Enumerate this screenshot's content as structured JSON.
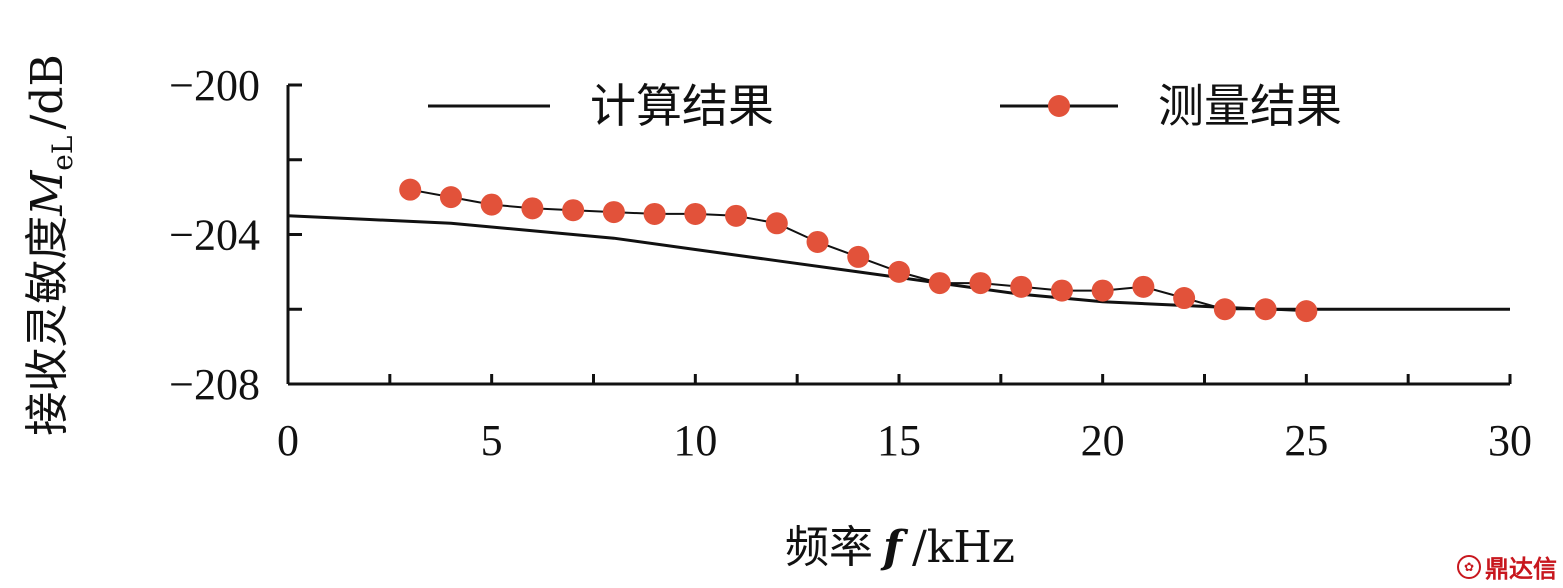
{
  "chart_data": {
    "type": "line",
    "xlabel_prefix": "频率",
    "xlabel_var": "f",
    "xlabel_unit": "/kHz",
    "ylabel_prefix": "接收灵敏度",
    "ylabel_var": "M",
    "ylabel_sub": "eL",
    "ylabel_unit": "/dB",
    "xlim": [
      0,
      30
    ],
    "ylim": [
      -208,
      -200
    ],
    "x_ticks": [
      "0",
      "5",
      "10",
      "15",
      "20",
      "25",
      "30"
    ],
    "y_ticks": [
      "−200",
      "−204",
      "−208"
    ],
    "legend_position": "top",
    "series": [
      {
        "name": "计算结果",
        "color": "#111111",
        "marker": "none",
        "x": [
          0,
          2,
          4,
          6,
          8,
          10,
          12,
          14,
          16,
          18,
          20,
          22,
          24,
          25,
          26,
          28,
          30
        ],
        "y": [
          -203.5,
          -203.6,
          -203.7,
          -203.9,
          -204.1,
          -204.4,
          -204.7,
          -205.0,
          -205.3,
          -205.6,
          -205.8,
          -205.9,
          -206.0,
          -206.0,
          -206.0,
          -206.0,
          -206.0
        ]
      },
      {
        "name": "测量结果",
        "color": "#e2523a",
        "marker": "circle",
        "x": [
          3,
          4,
          5,
          6,
          7,
          8,
          9,
          10,
          11,
          12,
          13,
          14,
          15,
          16,
          17,
          18,
          19,
          20,
          21,
          22,
          23,
          24,
          25
        ],
        "y": [
          -202.8,
          -203.0,
          -203.2,
          -203.3,
          -203.35,
          -203.4,
          -203.45,
          -203.45,
          -203.5,
          -203.7,
          -204.2,
          -204.6,
          -205.0,
          -205.3,
          -205.3,
          -205.4,
          -205.5,
          -205.5,
          -205.4,
          -205.7,
          -206.0,
          -206.0,
          -206.05
        ]
      }
    ]
  },
  "watermark": "鼎达信"
}
